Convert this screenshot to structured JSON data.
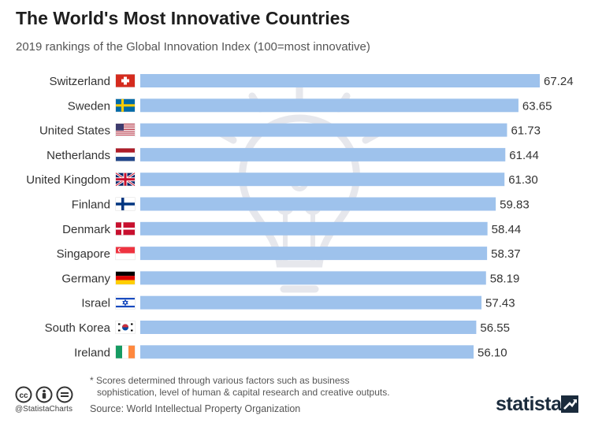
{
  "title": "The World's Most Innovative Countries",
  "subtitle": "2019 rankings of the Global Innovation Index (100=most innovative)",
  "colors": {
    "bar": "#9ec2ec",
    "text": "#333333",
    "watermark": "#e9eaee"
  },
  "chart_data": {
    "type": "bar",
    "orientation": "horizontal",
    "title": "The World's Most Innovative Countries",
    "subtitle": "2019 rankings of the Global Innovation Index (100=most innovative)",
    "categories": [
      "Switzerland",
      "Sweden",
      "United States",
      "Netherlands",
      "United Kingdom",
      "Finland",
      "Denmark",
      "Singapore",
      "Germany",
      "Israel",
      "South Korea",
      "Ireland"
    ],
    "values": [
      67.24,
      63.65,
      61.73,
      61.44,
      61.3,
      59.83,
      58.44,
      58.37,
      58.19,
      57.43,
      56.55,
      56.1
    ],
    "value_labels": [
      "67.24",
      "63.65",
      "61.73",
      "61.44",
      "61.30",
      "59.83",
      "58.44",
      "58.37",
      "58.19",
      "57.43",
      "56.55",
      "56.10"
    ],
    "flags": [
      "flag-switzerland-icon",
      "flag-sweden-icon",
      "flag-united-states-icon",
      "flag-netherlands-icon",
      "flag-united-kingdom-icon",
      "flag-finland-icon",
      "flag-denmark-icon",
      "flag-singapore-icon",
      "flag-germany-icon",
      "flag-israel-icon",
      "flag-south-korea-icon",
      "flag-ireland-icon"
    ],
    "xlim": [
      0,
      67.24
    ],
    "grid": false,
    "legend": "none"
  },
  "footnote": {
    "line1": "* Scores determined through various factors such as business",
    "line2": "sophistication, level of human & capital research and creative outputs."
  },
  "source": "Source: World Intellectual Property Organization",
  "handle": "@StatistaCharts",
  "brand": "statista",
  "icons": {
    "watermark": "lightbulb-icon",
    "license": [
      "cc-icon",
      "attribution-icon",
      "no-derivatives-icon"
    ],
    "brand_mark": "statista-logo-icon"
  }
}
